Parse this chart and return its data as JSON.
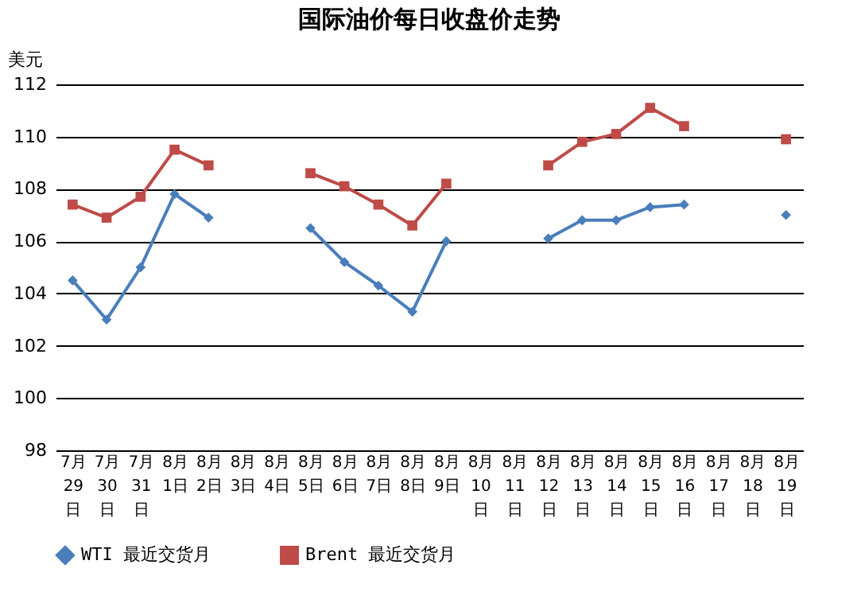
{
  "chart_data": {
    "type": "line",
    "title": "国际油价每日收盘价走势",
    "ylabel": "美元",
    "categories": [
      "7月29日",
      "7月30日",
      "7月31日",
      "8月1日",
      "8月2日",
      "8月3日",
      "8月4日",
      "8月5日",
      "8月6日",
      "8月7日",
      "8月8日",
      "8月9日",
      "8月10日",
      "8月11日",
      "8月12日",
      "8月13日",
      "8月14日",
      "8月15日",
      "8月16日",
      "8月17日",
      "8月18日",
      "8月19日"
    ],
    "series": [
      {
        "name": "WTI 最近交货月",
        "color": "#4a7ebb",
        "marker": "diamond",
        "values": [
          104.5,
          103.0,
          105.0,
          107.8,
          106.9,
          null,
          null,
          106.5,
          105.2,
          104.3,
          103.3,
          106.0,
          null,
          null,
          106.1,
          106.8,
          106.8,
          107.3,
          107.4,
          null,
          null,
          107.0
        ]
      },
      {
        "name": "Brent 最近交货月",
        "color": "#be4b48",
        "marker": "square",
        "values": [
          107.4,
          106.9,
          107.7,
          109.5,
          108.9,
          null,
          null,
          108.6,
          108.1,
          107.4,
          106.6,
          108.2,
          null,
          null,
          108.9,
          109.8,
          110.1,
          111.1,
          110.4,
          null,
          null,
          109.9
        ]
      }
    ],
    "ylim": [
      98,
      112
    ],
    "yticks": [
      98,
      100,
      102,
      104,
      106,
      108,
      110,
      112
    ],
    "grid": "y",
    "legend": "bottom",
    "line_style": "solid"
  }
}
